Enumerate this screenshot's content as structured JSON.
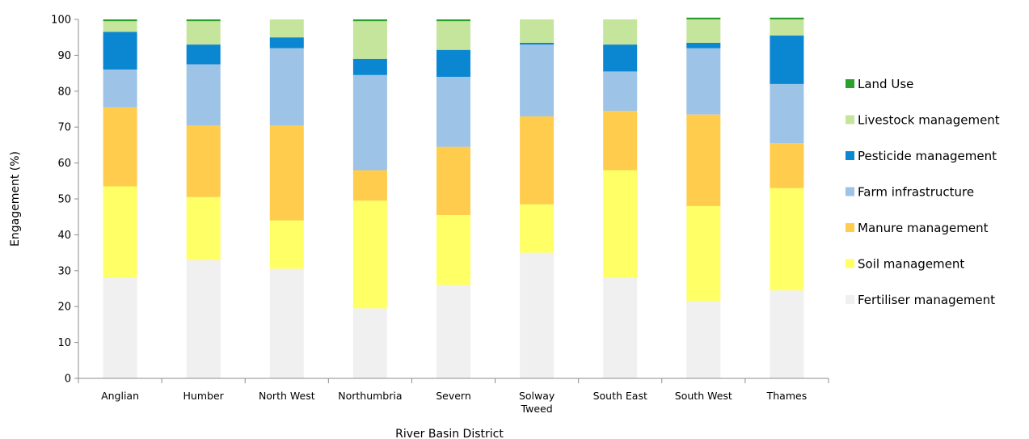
{
  "chart_data": {
    "type": "bar",
    "stacked": true,
    "xlabel": "River Basin District",
    "ylabel": "Engagement (%)",
    "ylim": [
      0,
      100
    ],
    "yticks": [
      0,
      10,
      20,
      30,
      40,
      50,
      60,
      70,
      80,
      90,
      100
    ],
    "grid": false,
    "legend_position": "right",
    "categories": [
      [
        "Anglian"
      ],
      [
        "Humber"
      ],
      [
        "North West"
      ],
      [
        "Northumbria"
      ],
      [
        "Severn"
      ],
      [
        "Solway",
        "Tweed"
      ],
      [
        "South East"
      ],
      [
        "South West"
      ],
      [
        "Thames"
      ]
    ],
    "series": [
      {
        "name": "Fertiliser management",
        "color": "#f0f0f0",
        "values": [
          28,
          33,
          30.5,
          19.5,
          26,
          35,
          28,
          21.5,
          24.5
        ]
      },
      {
        "name": "Soil management",
        "color": "#ffff66",
        "values": [
          25.5,
          17.5,
          13.5,
          30,
          19.5,
          13.5,
          30,
          26.5,
          28.5
        ]
      },
      {
        "name": "Manure management",
        "color": "#ffcc4d",
        "values": [
          22,
          20,
          26.5,
          8.5,
          19,
          24.5,
          16.5,
          25.5,
          12.5
        ]
      },
      {
        "name": "Farm infrastructure",
        "color": "#9dc3e6",
        "values": [
          10.5,
          17,
          21.5,
          26.5,
          19.5,
          20,
          11,
          18.5,
          16.5
        ]
      },
      {
        "name": "Pesticide management",
        "color": "#0b86d0",
        "values": [
          10.5,
          5.5,
          3,
          4.5,
          7.5,
          0.5,
          7.5,
          1.5,
          13.5
        ]
      },
      {
        "name": "Livestock management",
        "color": "#c4e59b",
        "values": [
          3,
          6.5,
          5,
          10.5,
          8,
          6.5,
          7,
          6.5,
          4.5
        ]
      },
      {
        "name": "Land Use",
        "color": "#2ca02c",
        "values": [
          0.5,
          0.5,
          0,
          0.5,
          0.5,
          0,
          0,
          0.5,
          0.5
        ]
      }
    ],
    "legend_order": [
      6,
      5,
      4,
      3,
      2,
      1,
      0
    ]
  }
}
